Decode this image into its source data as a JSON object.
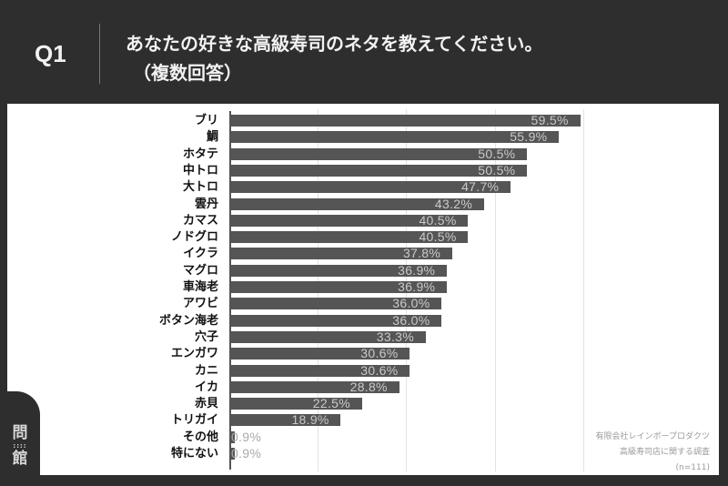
{
  "header": {
    "question_number": "Q1",
    "title": "あなたの好きな高級寿司のネタを教えてください。",
    "subtitle": "（複数回答）"
  },
  "logo": {
    "top": "問",
    "dots": "::::",
    "bottom": "館"
  },
  "source": {
    "line1": "有限会社レインボープロダクツ",
    "line2": "高級寿司店に関する調査",
    "line3": "(n=111)"
  },
  "colors": {
    "background": "#2e2e2e",
    "panel": "#ffffff",
    "bar": "#555555",
    "value_label": "#c9c9c9"
  },
  "chart_data": {
    "type": "bar",
    "orientation": "horizontal",
    "title": "あなたの好きな高級寿司のネタを教えてください。（複数回答）",
    "xlabel": "",
    "ylabel": "",
    "xlim": [
      0,
      60
    ],
    "gridlines_x": [
      0,
      15,
      30,
      45,
      60
    ],
    "grid": true,
    "legend": null,
    "unit": "%",
    "categories": [
      "ブリ",
      "鯛",
      "ホタテ",
      "中トロ",
      "大トロ",
      "雲丹",
      "カマス",
      "ノドグロ",
      "イクラ",
      "マグロ",
      "車海老",
      "アワビ",
      "ボタン海老",
      "穴子",
      "エンガワ",
      "カニ",
      "イカ",
      "赤貝",
      "トリガイ",
      "その他",
      "特にない"
    ],
    "values": [
      59.5,
      55.9,
      50.5,
      50.5,
      47.7,
      43.2,
      40.5,
      40.5,
      37.8,
      36.9,
      36.9,
      36.0,
      36.0,
      33.3,
      30.6,
      30.6,
      28.8,
      22.5,
      18.9,
      0.9,
      0.9
    ],
    "labels": [
      "59.5%",
      "55.9%",
      "50.5%",
      "50.5%",
      "47.7%",
      "43.2%",
      "40.5%",
      "40.5%",
      "37.8%",
      "36.9%",
      "36.9%",
      "36.0%",
      "36.0%",
      "33.3%",
      "30.6%",
      "30.6%",
      "28.8%",
      "22.5%",
      "18.9%",
      "0.9%",
      "0.9%"
    ],
    "annotation": "有限会社レインボープロダクツ 高級寿司店に関する調査 (n=111)"
  }
}
